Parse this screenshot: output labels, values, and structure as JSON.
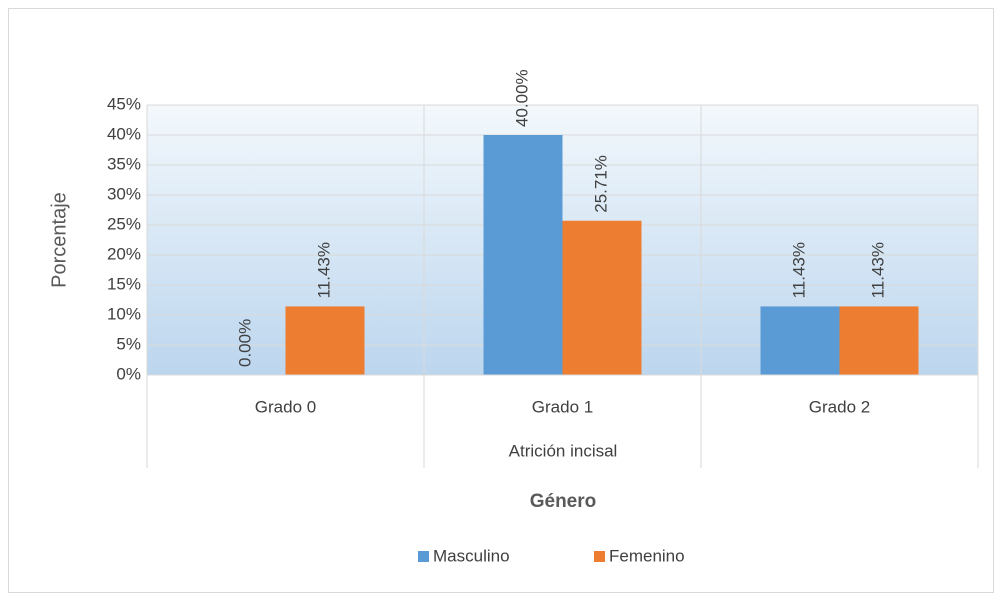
{
  "chart_data": {
    "type": "bar",
    "title": "Género",
    "y_label": "Porcentaje",
    "x_label": "Atrición incisal",
    "categories": [
      "Grado 0",
      "Grado 1",
      "Grado 2"
    ],
    "series": [
      {
        "name": "Masculino",
        "color": "#5b9bd5",
        "values": [
          0,
          40,
          11.43
        ],
        "value_labels": [
          "0.00%",
          "40.00%",
          "11.43%"
        ]
      },
      {
        "name": "Femenino",
        "color": "#ed7d31",
        "values": [
          11.43,
          25.71,
          11.43
        ],
        "value_labels": [
          "11.43%",
          "25.71%",
          "11.43%"
        ]
      }
    ],
    "ylim": [
      0,
      45
    ],
    "yticks": [
      {
        "value": 0,
        "label": "0%"
      },
      {
        "value": 5,
        "label": "5%"
      },
      {
        "value": 10,
        "label": "10%"
      },
      {
        "value": 15,
        "label": "15%"
      },
      {
        "value": 20,
        "label": "20%"
      },
      {
        "value": 25,
        "label": "25%"
      },
      {
        "value": 30,
        "label": "30%"
      },
      {
        "value": 35,
        "label": "35%"
      },
      {
        "value": 40,
        "label": "40%"
      },
      {
        "value": 45,
        "label": "45%"
      }
    ],
    "grid": true,
    "legend": "bottom"
  }
}
